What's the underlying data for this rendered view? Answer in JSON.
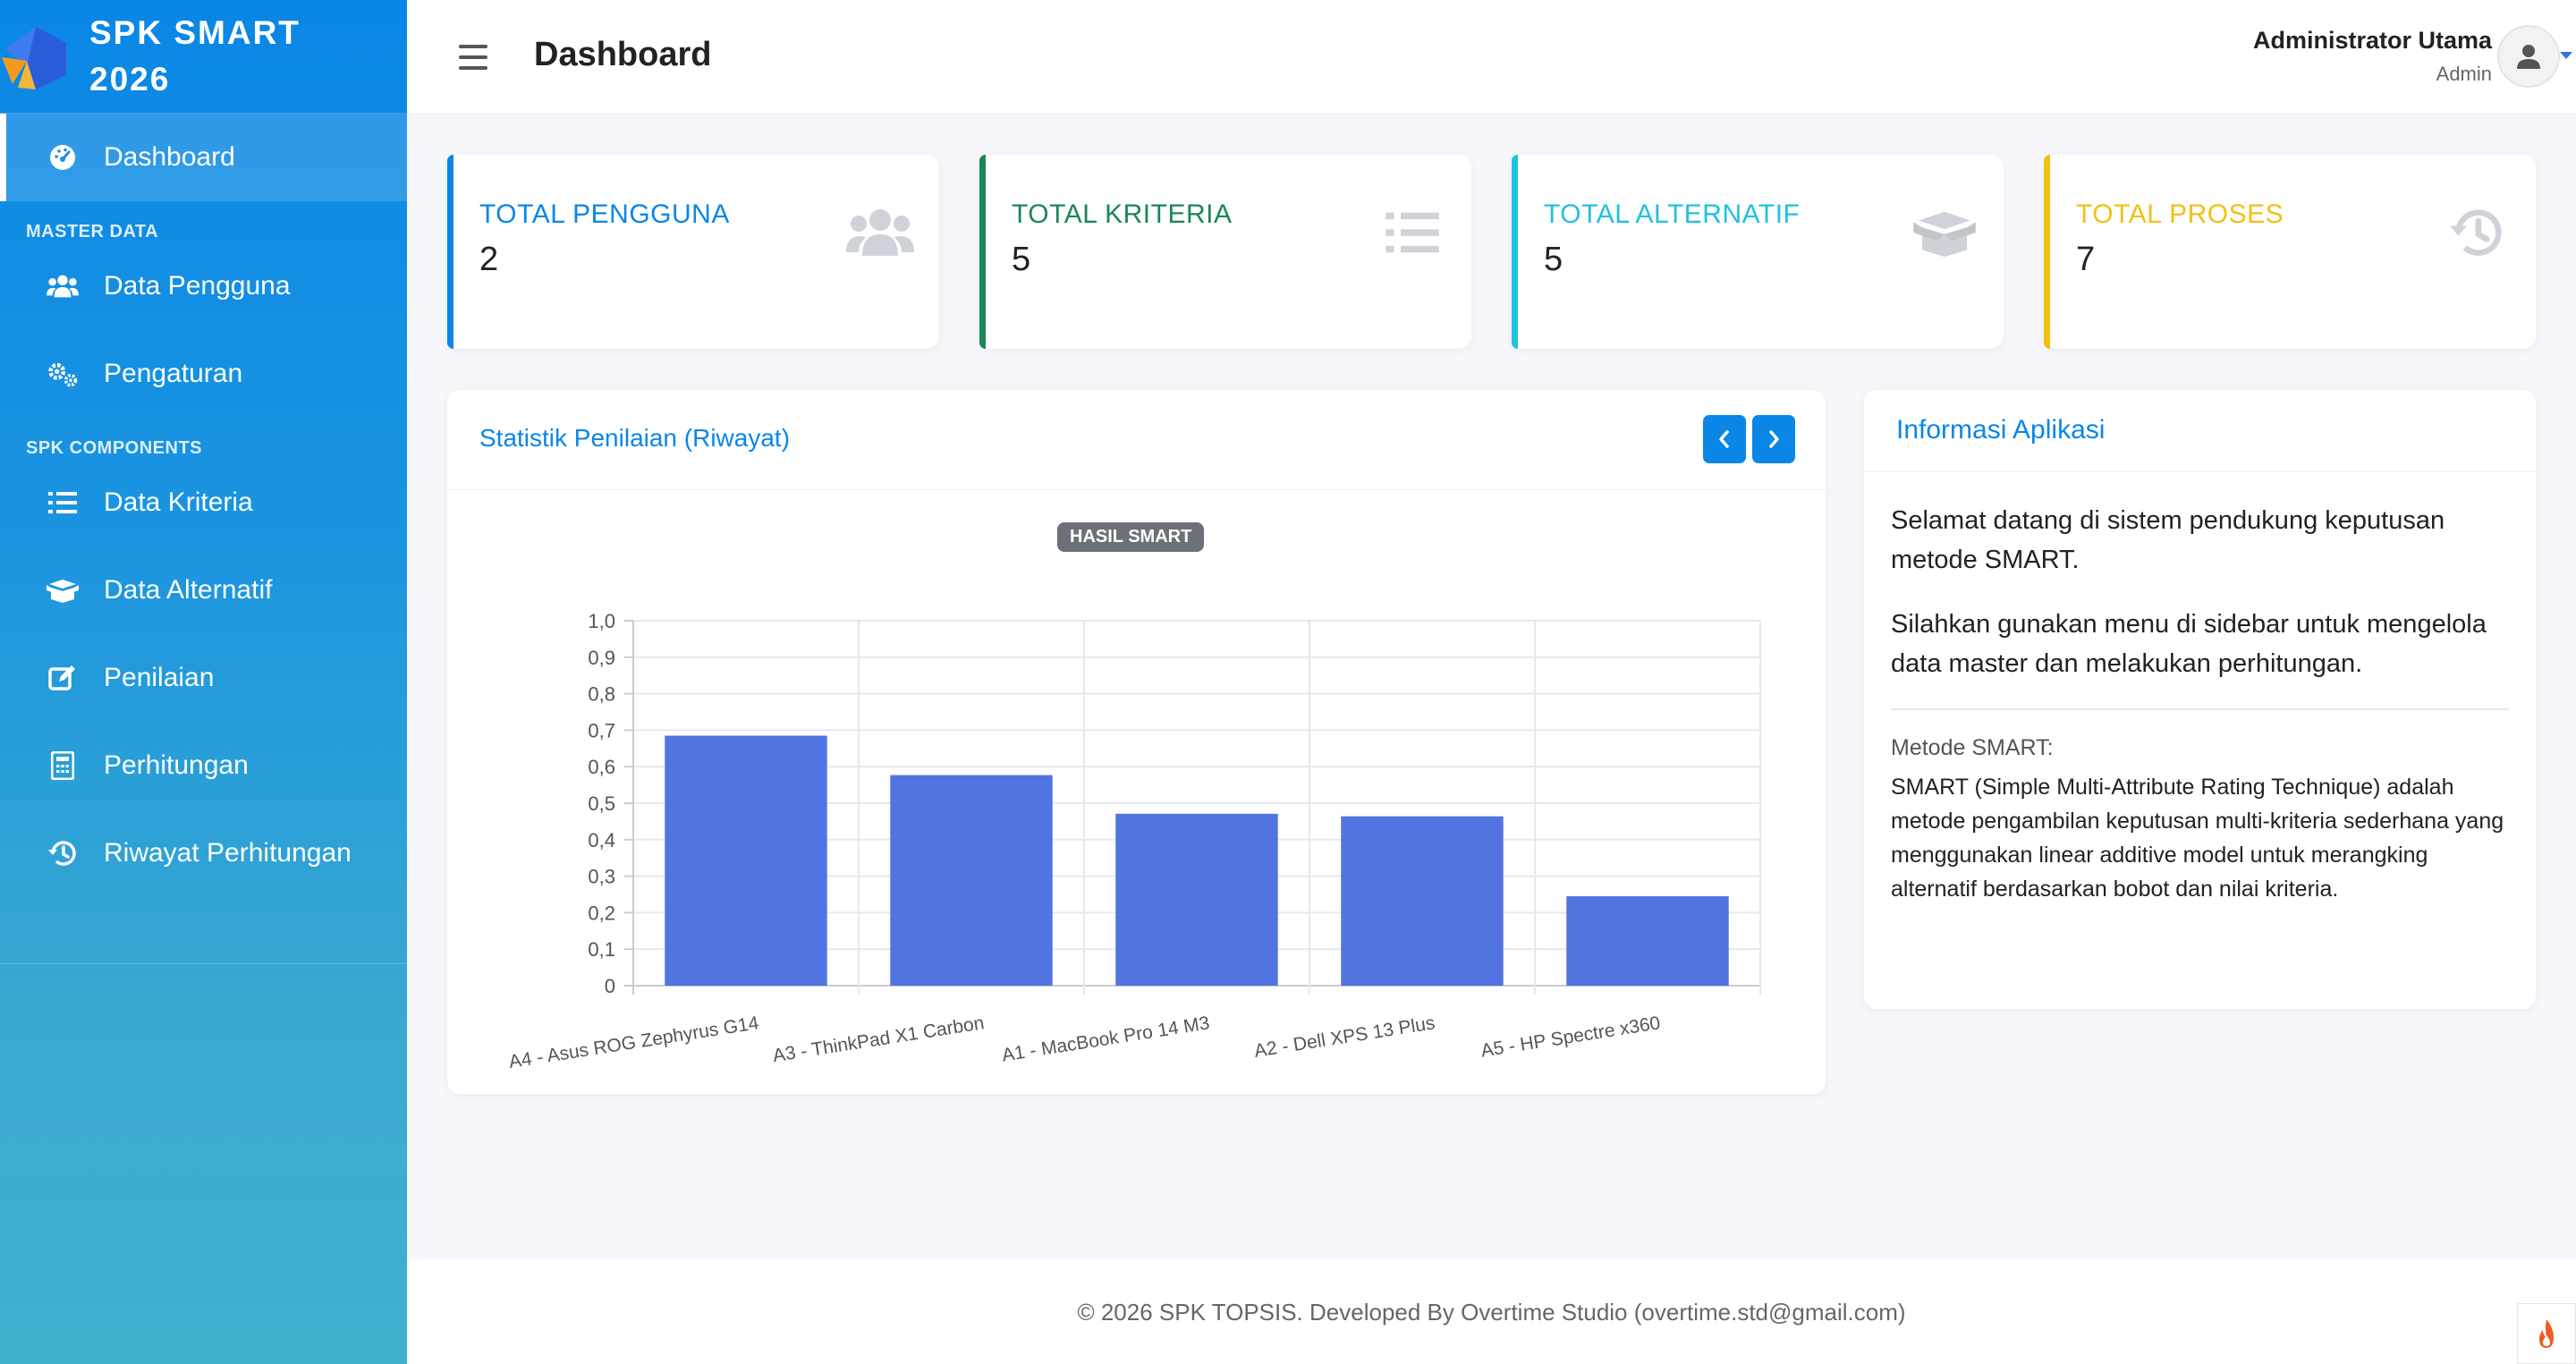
{
  "brand": {
    "line1": "SPK SMART",
    "line2": "2026"
  },
  "sidebar": {
    "dashboard": "Dashboard",
    "section_master": "MASTER DATA",
    "data_pengguna": "Data Pengguna",
    "pengaturan": "Pengaturan",
    "section_spk": "SPK COMPONENTS",
    "data_kriteria": "Data Kriteria",
    "data_alternatif": "Data Alternatif",
    "penilaian": "Penilaian",
    "perhitungan": "Perhitungan",
    "riwayat": "Riwayat Perhitungan"
  },
  "header": {
    "title": "Dashboard",
    "user_name": "Administrator Utama",
    "user_role": "Admin"
  },
  "stats": [
    {
      "label": "TOTAL PENGGUNA",
      "value": "2",
      "color": "#0a86e6",
      "icon": "users-icon"
    },
    {
      "label": "TOTAL KRITERIA",
      "value": "5",
      "color": "#198754",
      "icon": "list-icon"
    },
    {
      "label": "TOTAL ALTERNATIF",
      "value": "5",
      "color": "#1fc1e0",
      "icon": "box-open-icon"
    },
    {
      "label": "TOTAL PROSES",
      "value": "7",
      "color": "#f2c014",
      "icon": "history-icon"
    }
  ],
  "chart_card": {
    "title": "Statistik Penilaian (Riwayat)"
  },
  "chart_data": {
    "type": "bar",
    "title": "HASIL SMART",
    "categories": [
      "A4 - Asus ROG Zephyrus G14",
      "A3 - ThinkPad X1 Carbon",
      "A1 - MacBook Pro 14 M3",
      "A2 - Dell XPS 13 Plus",
      "A5 - HP Spectre x360"
    ],
    "values": [
      0.685,
      0.577,
      0.471,
      0.464,
      0.245
    ],
    "yticks": [
      "0",
      "0,1",
      "0,2",
      "0,3",
      "0,4",
      "0,5",
      "0,6",
      "0,7",
      "0,8",
      "0,9",
      "1,0"
    ],
    "ylim": [
      0,
      1
    ],
    "grid": true,
    "bar_color": "#5274e0"
  },
  "info": {
    "title": "Informasi Aplikasi",
    "p1": "Selamat datang di sistem pendukung keputusan metode SMART.",
    "p2": "Silahkan gunakan menu di sidebar untuk mengelola data master dan melakukan perhitungan.",
    "sub": "Metode SMART:",
    "desc": "SMART (Simple Multi-Attribute Rating Technique) adalah metode pengambilan keputusan multi-kriteria sederhana yang menggunakan linear additive model untuk merangking alternatif berdasarkan bobot dan nilai kriteria."
  },
  "footer": {
    "text": "© 2026 SPK TOPSIS. Developed By Overtime Studio (overtime.std@gmail.com)"
  }
}
